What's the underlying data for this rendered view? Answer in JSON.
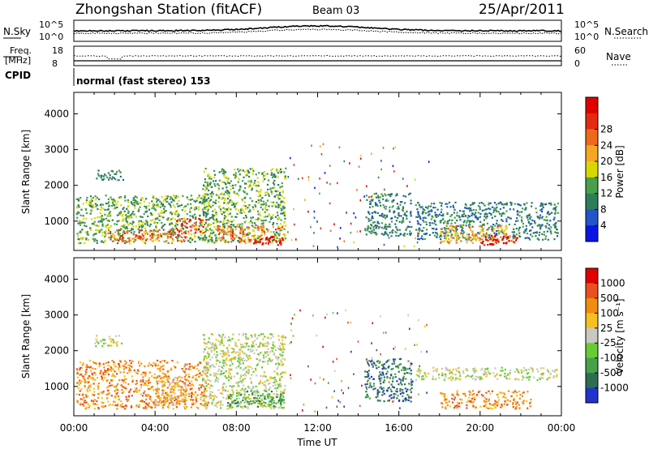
{
  "header": {
    "station": "Zhongshan Station (fitACF)",
    "beam": "Beam 03",
    "date": "25/Apr/2011"
  },
  "panels": {
    "nsky": {
      "label": "N.Sky",
      "ticks": [
        "10^5",
        "10^0"
      ]
    },
    "nsearch": {
      "label": "N.Search",
      "ticks": [
        "10^5",
        "10^0"
      ]
    },
    "freq": {
      "label_line1": "Freq.",
      "label_line2": "[MHz]",
      "ticks": [
        "18",
        "8"
      ]
    },
    "nave": {
      "label": "Nave",
      "ticks": [
        "60",
        "0"
      ]
    },
    "cpid": {
      "label": "CPID",
      "value": "normal (fast stereo) 153"
    }
  },
  "chart_data": [
    {
      "type": "heatmap",
      "name": "power",
      "xlabel": "",
      "ylabel": "Slant Range [km]",
      "xlim": [
        0,
        24
      ],
      "ylim": [
        180,
        4600
      ],
      "yticks": [
        "1000",
        "2000",
        "3000",
        "4000"
      ],
      "colorbar": {
        "label": "Power [dB]",
        "ticks": [
          "4",
          "8",
          "12",
          "16",
          "20",
          "24",
          "28"
        ],
        "colors": [
          "#0a14e6",
          "#2255c8",
          "#2d7d5a",
          "#48a04a",
          "#d8d800",
          "#f5a623",
          "#ee6a1a",
          "#e52a12",
          "#e00000"
        ]
      },
      "blobs": [
        {
          "t0": 0.1,
          "t1": 6.6,
          "r0": 400,
          "r1": 1750,
          "level": 3
        },
        {
          "t0": 1.0,
          "t1": 2.4,
          "r0": 2150,
          "r1": 2450,
          "level": 2
        },
        {
          "t0": 1.5,
          "t1": 5.5,
          "r0": 450,
          "r1": 800,
          "level": 6
        },
        {
          "t0": 5.0,
          "t1": 6.5,
          "r0": 700,
          "r1": 1100,
          "level": 7
        },
        {
          "t0": 6.3,
          "t1": 10.4,
          "r0": 400,
          "r1": 2500,
          "level": 3
        },
        {
          "t0": 7.0,
          "t1": 10.3,
          "r0": 400,
          "r1": 900,
          "level": 6
        },
        {
          "t0": 8.8,
          "t1": 10.3,
          "r0": 350,
          "r1": 600,
          "level": 8
        },
        {
          "t0": 14.3,
          "t1": 16.6,
          "r0": 600,
          "r1": 1800,
          "level": 2
        },
        {
          "t0": 16.8,
          "t1": 23.8,
          "r0": 500,
          "r1": 1550,
          "level": 2
        },
        {
          "t0": 18.0,
          "t1": 21.5,
          "r0": 400,
          "r1": 900,
          "level": 5
        },
        {
          "t0": 20.0,
          "t1": 21.8,
          "r0": 350,
          "r1": 650,
          "level": 8
        }
      ]
    },
    {
      "type": "heatmap",
      "name": "velocity",
      "xlabel": "Time UT",
      "ylabel": "Slant Range [km]",
      "xlim": [
        0,
        24
      ],
      "ylim": [
        180,
        4600
      ],
      "xticks": [
        "00:00",
        "04:00",
        "08:00",
        "12:00",
        "16:00",
        "20:00",
        "00:00"
      ],
      "yticks": [
        "1000",
        "2000",
        "3000",
        "4000"
      ],
      "colorbar": {
        "label": "Velocity [m s⁻¹]",
        "ticks": [
          "1000",
          "500",
          "100",
          "25",
          "-25",
          "-100",
          "-500",
          "-1000"
        ],
        "colors": [
          "#2233cc",
          "#2d6e50",
          "#48a04a",
          "#66cc33",
          "#c8c8c0",
          "#f5c020",
          "#f08c10",
          "#e85020",
          "#e00000"
        ]
      },
      "blobs": [
        {
          "t0": 0.1,
          "t1": 6.6,
          "r0": 400,
          "r1": 1750,
          "level": 6
        },
        {
          "t0": 1.0,
          "t1": 2.4,
          "r0": 2150,
          "r1": 2450,
          "level": 4
        },
        {
          "t0": 4.0,
          "t1": 5.6,
          "r0": 500,
          "r1": 1300,
          "level": 5
        },
        {
          "t0": 6.3,
          "t1": 10.4,
          "r0": 400,
          "r1": 2500,
          "level": 4
        },
        {
          "t0": 7.5,
          "t1": 10.3,
          "r0": 450,
          "r1": 900,
          "level": 2
        },
        {
          "t0": 14.3,
          "t1": 16.6,
          "r0": 600,
          "r1": 1800,
          "level": 1
        },
        {
          "t0": 16.8,
          "t1": 23.8,
          "r0": 1200,
          "r1": 1550,
          "level": 4
        },
        {
          "t0": 18.0,
          "t1": 22.5,
          "r0": 400,
          "r1": 900,
          "level": 6
        }
      ]
    }
  ]
}
